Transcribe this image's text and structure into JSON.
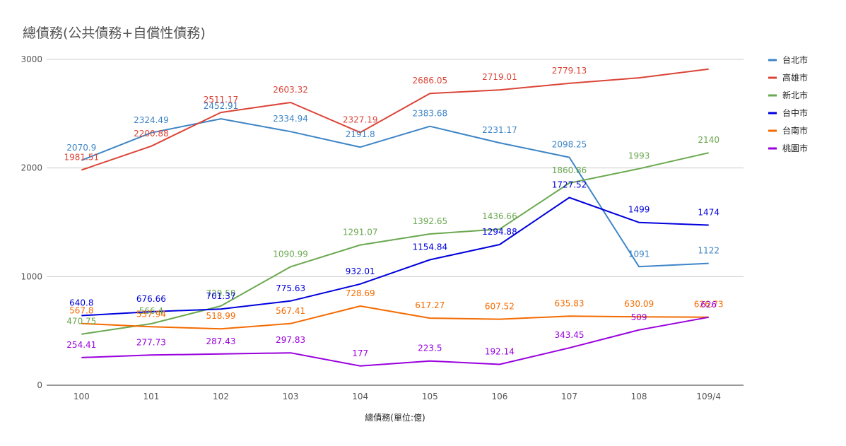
{
  "chart_data": {
    "type": "line",
    "title": "總債務(公共債務+自償性債務)",
    "xlabel": "總債務(單位:億)",
    "ylabel": "",
    "categories": [
      "100",
      "101",
      "102",
      "103",
      "104",
      "105",
      "106",
      "107",
      "108",
      "109/4"
    ],
    "ylim": [
      0,
      3000
    ],
    "yticks": [
      0,
      1000,
      2000,
      3000
    ],
    "grid": true,
    "legend_position": "right",
    "series": [
      {
        "name": "台北市",
        "color": "#3d85c6",
        "values": [
          2070.9,
          2324.49,
          2452.91,
          2334.94,
          2191.8,
          2383.68,
          2231.17,
          2098.25,
          1091,
          1122
        ],
        "labels": [
          "2070.9",
          "2324.49",
          "2452.91",
          "2334.94",
          "2191.8",
          "2383.68",
          "2231.17",
          "2098.25",
          "1091",
          "1122"
        ]
      },
      {
        "name": "高雄市",
        "color": "#db4437",
        "values": [
          1981.51,
          2200.88,
          2511.17,
          2603.32,
          2327.19,
          2686.05,
          2719.01,
          2779.13,
          2830,
          2910
        ],
        "labels": [
          "1981.51",
          "2200.88",
          "2511.17",
          "2603.32",
          "2327.19",
          "2686.05",
          "2719.01",
          "2779.13",
          "",
          ""
        ]
      },
      {
        "name": "新北市",
        "color": "#6aa84f",
        "values": [
          470.75,
          566.4,
          729.58,
          1090.99,
          1291.07,
          1392.65,
          1436.66,
          1860.86,
          1993,
          2140
        ],
        "labels": [
          "470.75",
          "566.4",
          "729.58",
          "1090.99",
          "1291.07",
          "1392.65",
          "1436.66",
          "1860.86",
          "1993",
          "2140"
        ]
      },
      {
        "name": "台中市",
        "color": "#0000dd",
        "values": [
          640.8,
          676.66,
          701.37,
          775.63,
          932.01,
          1154.84,
          1294.88,
          1727.52,
          1499,
          1474
        ],
        "labels": [
          "640.8",
          "676.66",
          "701.37",
          "775.63",
          "932.01",
          "1154.84",
          "1294.88",
          "1727.52",
          "1499",
          "1474"
        ]
      },
      {
        "name": "台南市",
        "color": "#f46b00",
        "values": [
          567.8,
          537.94,
          518.99,
          567.41,
          728.69,
          617.27,
          607.52,
          635.83,
          630.09,
          626.73
        ],
        "labels": [
          "567.8",
          "537.94",
          "518.99",
          "567.41",
          "728.69",
          "617.27",
          "607.52",
          "635.83",
          "630.09",
          "626.73"
        ]
      },
      {
        "name": "桃園市",
        "color": "#9900dd",
        "values": [
          254.41,
          277.73,
          287.43,
          297.83,
          177,
          223.5,
          192.14,
          343.45,
          509,
          626
        ],
        "labels": [
          "254.41",
          "277.73",
          "287.43",
          "297.83",
          "177",
          "223.5",
          "192.14",
          "343.45",
          "509",
          "626"
        ]
      }
    ]
  }
}
